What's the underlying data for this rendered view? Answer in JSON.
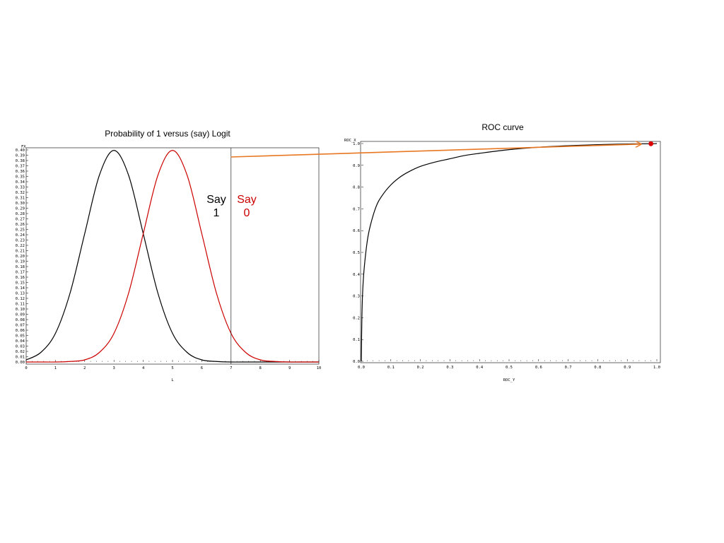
{
  "chart_data": [
    {
      "type": "line",
      "title": "Probability of 1 versus (say) Logit",
      "xlabel": "L",
      "ylabel": "FX",
      "xlim": [
        0,
        10
      ],
      "ylim": [
        0,
        0.4
      ],
      "x_ticks": [
        "0",
        "1",
        "2",
        "3",
        "4",
        "5",
        "6",
        "7",
        "8",
        "9",
        "10"
      ],
      "y_ticks": [
        "0.00",
        "0.01",
        "0.02",
        "0.03",
        "0.04",
        "0.05",
        "0.06",
        "0.07",
        "0.08",
        "0.09",
        "0.10",
        "0.11",
        "0.12",
        "0.13",
        "0.14",
        "0.15",
        "0.16",
        "0.17",
        "0.18",
        "0.19",
        "0.20",
        "0.21",
        "0.22",
        "0.23",
        "0.24",
        "0.25",
        "0.26",
        "0.27",
        "0.28",
        "0.29",
        "0.30",
        "0.31",
        "0.32",
        "0.33",
        "0.34",
        "0.35",
        "0.36",
        "0.37",
        "0.38",
        "0.39",
        "0.40"
      ],
      "x": [
        0,
        0.5,
        1,
        1.5,
        2,
        2.5,
        3,
        3.5,
        4,
        4.5,
        5,
        5.5,
        6,
        6.5,
        7,
        7.5,
        8,
        8.5,
        9,
        9.5,
        10
      ],
      "series": [
        {
          "color": "#000000",
          "values": [
            0.004,
            0.018,
            0.054,
            0.13,
            0.242,
            0.352,
            0.399,
            0.352,
            0.242,
            0.13,
            0.054,
            0.018,
            0.004,
            0.001,
            0.0,
            0.0,
            0.0,
            0.0,
            0.0,
            0.0,
            0.0
          ]
        },
        {
          "color": "#cc0000",
          "values": [
            0.0,
            0.0,
            0.0,
            0.001,
            0.004,
            0.018,
            0.054,
            0.13,
            0.242,
            0.352,
            0.399,
            0.352,
            0.242,
            0.13,
            0.054,
            0.018,
            0.004,
            0.001,
            0.0,
            0.0,
            0.0
          ]
        }
      ],
      "threshold_x": 7,
      "annotations": [
        {
          "line1": "Say",
          "line2": "1",
          "color": "#000000"
        },
        {
          "line1": "Say",
          "line2": "0",
          "color": "#cc0000"
        }
      ]
    },
    {
      "type": "line",
      "title": "ROC curve",
      "xlabel": "ROC_Y",
      "ylabel": "ROC_X",
      "xlim": [
        0,
        1
      ],
      "ylim": [
        0,
        1
      ],
      "x_ticks": [
        "0.0",
        "0.1",
        "0.2",
        "0.3",
        "0.4",
        "0.5",
        "0.6",
        "0.7",
        "0.8",
        "0.9",
        "1.0"
      ],
      "y_ticks": [
        "0.0",
        "0.1",
        "0.2",
        "0.3",
        "0.4",
        "0.5",
        "0.6",
        "0.7",
        "0.8",
        "0.9",
        "1.0"
      ],
      "x": [
        0,
        0.002,
        0.005,
        0.01,
        0.02,
        0.03,
        0.05,
        0.07,
        0.1,
        0.13,
        0.16,
        0.2,
        0.25,
        0.3,
        0.35,
        0.4,
        0.5,
        0.6,
        0.7,
        0.8,
        0.9,
        0.98,
        1.0
      ],
      "series": [
        {
          "color": "#000000",
          "values": [
            0,
            0.2,
            0.33,
            0.43,
            0.55,
            0.62,
            0.71,
            0.76,
            0.81,
            0.845,
            0.87,
            0.895,
            0.915,
            0.93,
            0.945,
            0.955,
            0.972,
            0.983,
            0.99,
            0.995,
            0.998,
            0.999,
            1.0
          ]
        }
      ],
      "marker": {
        "x": 0.98,
        "y": 0.999,
        "color": "#dd0000"
      },
      "arrow_color": "#e87722"
    }
  ]
}
